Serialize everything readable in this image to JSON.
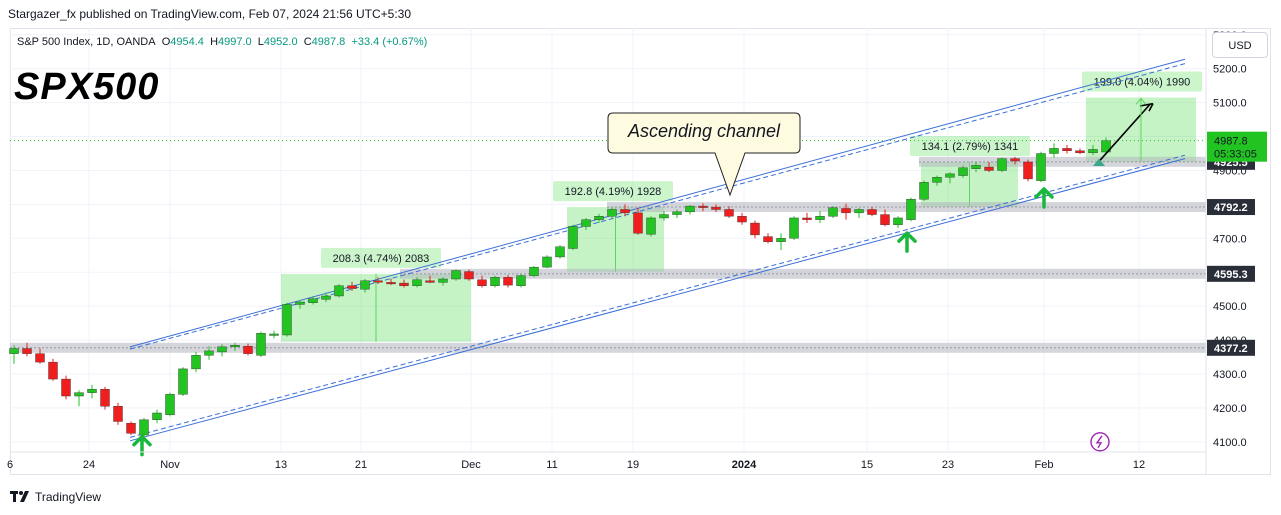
{
  "header": {
    "publisher": "Stargazer_fx published on TradingView.com, Feb 07, 2024 21:56 UTC+5:30",
    "symbol": "S&P 500 Index, 1D, OANDA",
    "o_label": "O",
    "o_value": "4954.4",
    "h_label": "H",
    "h_value": "4997.0",
    "l_label": "L",
    "l_value": "4952.0",
    "c_label": "C",
    "c_value": "4987.8",
    "change": "+33.4 (+0.67%)",
    "title": "SPX500",
    "currency_button": "USD"
  },
  "footer": {
    "brand": "TradingView",
    "logo_icon": "tradingview-logo-icon"
  },
  "colors": {
    "up": "#22c422",
    "down": "#f01e1e",
    "channel": "#3b6fd8",
    "zone": "rgba(90,220,90,0.35)",
    "level": "#b2b5be"
  },
  "chart_data": {
    "type": "candlestick",
    "x_ticks": [
      "6",
      "24",
      "Nov",
      "13",
      "21",
      "Dec",
      "11",
      "19",
      "2024",
      "15",
      "23",
      "Feb",
      "12"
    ],
    "y_ticks": [
      4100.0,
      4200.0,
      4300.0,
      4400.0,
      4500.0,
      4600.0,
      4700.0,
      4800.0,
      4900.0,
      5000.0,
      5100.0,
      5200.0,
      5300.0
    ],
    "ylim": [
      4070,
      5320
    ],
    "candles": [
      {
        "o": 4360,
        "h": 4385,
        "l": 4330,
        "c": 4375
      },
      {
        "o": 4375,
        "h": 4392,
        "l": 4352,
        "c": 4360
      },
      {
        "o": 4360,
        "h": 4375,
        "l": 4330,
        "c": 4335
      },
      {
        "o": 4335,
        "h": 4345,
        "l": 4280,
        "c": 4285
      },
      {
        "o": 4285,
        "h": 4295,
        "l": 4225,
        "c": 4235
      },
      {
        "o": 4235,
        "h": 4252,
        "l": 4205,
        "c": 4245
      },
      {
        "o": 4245,
        "h": 4268,
        "l": 4228,
        "c": 4255
      },
      {
        "o": 4255,
        "h": 4262,
        "l": 4195,
        "c": 4205
      },
      {
        "o": 4205,
        "h": 4215,
        "l": 4150,
        "c": 4160
      },
      {
        "o": 4155,
        "h": 4160,
        "l": 4120,
        "c": 4125
      },
      {
        "o": 4120,
        "h": 4170,
        "l": 4105,
        "c": 4165
      },
      {
        "o": 4165,
        "h": 4195,
        "l": 4155,
        "c": 4185
      },
      {
        "o": 4180,
        "h": 4245,
        "l": 4175,
        "c": 4240
      },
      {
        "o": 4240,
        "h": 4320,
        "l": 4235,
        "c": 4315
      },
      {
        "o": 4315,
        "h": 4365,
        "l": 4305,
        "c": 4355
      },
      {
        "o": 4355,
        "h": 4382,
        "l": 4342,
        "c": 4368
      },
      {
        "o": 4365,
        "h": 4388,
        "l": 4352,
        "c": 4380
      },
      {
        "o": 4380,
        "h": 4392,
        "l": 4368,
        "c": 4385
      },
      {
        "o": 4382,
        "h": 4390,
        "l": 4355,
        "c": 4360
      },
      {
        "o": 4355,
        "h": 4425,
        "l": 4350,
        "c": 4420
      },
      {
        "o": 4415,
        "h": 4428,
        "l": 4405,
        "c": 4418
      },
      {
        "o": 4415,
        "h": 4510,
        "l": 4410,
        "c": 4505
      },
      {
        "o": 4505,
        "h": 4518,
        "l": 4492,
        "c": 4512
      },
      {
        "o": 4510,
        "h": 4530,
        "l": 4505,
        "c": 4522
      },
      {
        "o": 4520,
        "h": 4540,
        "l": 4512,
        "c": 4530
      },
      {
        "o": 4530,
        "h": 4565,
        "l": 4525,
        "c": 4560
      },
      {
        "o": 4560,
        "h": 4572,
        "l": 4545,
        "c": 4552
      },
      {
        "o": 4550,
        "h": 4580,
        "l": 4540,
        "c": 4575
      },
      {
        "o": 4575,
        "h": 4585,
        "l": 4565,
        "c": 4572
      },
      {
        "o": 4570,
        "h": 4582,
        "l": 4562,
        "c": 4568
      },
      {
        "o": 4568,
        "h": 4578,
        "l": 4555,
        "c": 4560
      },
      {
        "o": 4560,
        "h": 4585,
        "l": 4555,
        "c": 4578
      },
      {
        "o": 4575,
        "h": 4590,
        "l": 4568,
        "c": 4570
      },
      {
        "o": 4570,
        "h": 4585,
        "l": 4560,
        "c": 4580
      },
      {
        "o": 4580,
        "h": 4608,
        "l": 4575,
        "c": 4605
      },
      {
        "o": 4602,
        "h": 4608,
        "l": 4575,
        "c": 4580
      },
      {
        "o": 4578,
        "h": 4590,
        "l": 4555,
        "c": 4560
      },
      {
        "o": 4560,
        "h": 4590,
        "l": 4555,
        "c": 4585
      },
      {
        "o": 4585,
        "h": 4592,
        "l": 4555,
        "c": 4562
      },
      {
        "o": 4560,
        "h": 4595,
        "l": 4555,
        "c": 4590
      },
      {
        "o": 4590,
        "h": 4618,
        "l": 4585,
        "c": 4615
      },
      {
        "o": 4615,
        "h": 4650,
        "l": 4612,
        "c": 4645
      },
      {
        "o": 4645,
        "h": 4680,
        "l": 4640,
        "c": 4675
      },
      {
        "o": 4670,
        "h": 4740,
        "l": 4665,
        "c": 4735
      },
      {
        "o": 4735,
        "h": 4760,
        "l": 4725,
        "c": 4755
      },
      {
        "o": 4755,
        "h": 4772,
        "l": 4745,
        "c": 4765
      },
      {
        "o": 4765,
        "h": 4790,
        "l": 4760,
        "c": 4785
      },
      {
        "o": 4785,
        "h": 4800,
        "l": 4765,
        "c": 4775
      },
      {
        "o": 4775,
        "h": 4790,
        "l": 4710,
        "c": 4715
      },
      {
        "o": 4712,
        "h": 4765,
        "l": 4705,
        "c": 4760
      },
      {
        "o": 4760,
        "h": 4780,
        "l": 4752,
        "c": 4770
      },
      {
        "o": 4770,
        "h": 4785,
        "l": 4760,
        "c": 4778
      },
      {
        "o": 4778,
        "h": 4798,
        "l": 4770,
        "c": 4795
      },
      {
        "o": 4795,
        "h": 4803,
        "l": 4780,
        "c": 4792
      },
      {
        "o": 4792,
        "h": 4800,
        "l": 4778,
        "c": 4785
      },
      {
        "o": 4785,
        "h": 4795,
        "l": 4760,
        "c": 4765
      },
      {
        "o": 4765,
        "h": 4775,
        "l": 4740,
        "c": 4748
      },
      {
        "o": 4745,
        "h": 4752,
        "l": 4700,
        "c": 4710
      },
      {
        "o": 4705,
        "h": 4715,
        "l": 4685,
        "c": 4690
      },
      {
        "o": 4690,
        "h": 4715,
        "l": 4665,
        "c": 4700
      },
      {
        "o": 4700,
        "h": 4765,
        "l": 4695,
        "c": 4760
      },
      {
        "o": 4760,
        "h": 4775,
        "l": 4745,
        "c": 4755
      },
      {
        "o": 4755,
        "h": 4780,
        "l": 4745,
        "c": 4765
      },
      {
        "o": 4765,
        "h": 4795,
        "l": 4760,
        "c": 4790
      },
      {
        "o": 4788,
        "h": 4802,
        "l": 4755,
        "c": 4775
      },
      {
        "o": 4775,
        "h": 4790,
        "l": 4760,
        "c": 4785
      },
      {
        "o": 4785,
        "h": 4792,
        "l": 4765,
        "c": 4770
      },
      {
        "o": 4770,
        "h": 4785,
        "l": 4735,
        "c": 4740
      },
      {
        "o": 4740,
        "h": 4765,
        "l": 4730,
        "c": 4760
      },
      {
        "o": 4755,
        "h": 4820,
        "l": 4750,
        "c": 4815
      },
      {
        "o": 4815,
        "h": 4870,
        "l": 4810,
        "c": 4865
      },
      {
        "o": 4865,
        "h": 4885,
        "l": 4855,
        "c": 4880
      },
      {
        "o": 4880,
        "h": 4895,
        "l": 4862,
        "c": 4890
      },
      {
        "o": 4885,
        "h": 4915,
        "l": 4878,
        "c": 4908
      },
      {
        "o": 4905,
        "h": 4925,
        "l": 4895,
        "c": 4915
      },
      {
        "o": 4910,
        "h": 4925,
        "l": 4895,
        "c": 4900
      },
      {
        "o": 4900,
        "h": 4938,
        "l": 4895,
        "c": 4935
      },
      {
        "o": 4935,
        "h": 4940,
        "l": 4918,
        "c": 4928
      },
      {
        "o": 4925,
        "h": 4932,
        "l": 4868,
        "c": 4875
      },
      {
        "o": 4870,
        "h": 4955,
        "l": 4865,
        "c": 4950
      },
      {
        "o": 4950,
        "h": 4980,
        "l": 4938,
        "c": 4965
      },
      {
        "o": 4965,
        "h": 4975,
        "l": 4950,
        "c": 4958
      },
      {
        "o": 4958,
        "h": 4965,
        "l": 4948,
        "c": 4952
      },
      {
        "o": 4952,
        "h": 4975,
        "l": 4945,
        "c": 4962
      },
      {
        "o": 4954.4,
        "h": 4997.0,
        "l": 4952.0,
        "c": 4987.8
      }
    ],
    "levels": [
      {
        "value": 4925.5,
        "label": "4925.5"
      },
      {
        "value": 4792.2,
        "label": "4792.2"
      },
      {
        "value": 4595.3,
        "label": "4595.3"
      },
      {
        "value": 4377.2,
        "label": "4377.2"
      }
    ],
    "price_label": {
      "value": 4987.8,
      "label": "4987.8",
      "countdown": "05:33:05"
    },
    "measure_labels": [
      "208.3 (4.74%) 2083",
      "192.8 (4.19%) 1928",
      "134.1 (2.79%) 1341",
      "199.0 (4.04%) 1990"
    ],
    "annotation": "Ascending channel"
  }
}
